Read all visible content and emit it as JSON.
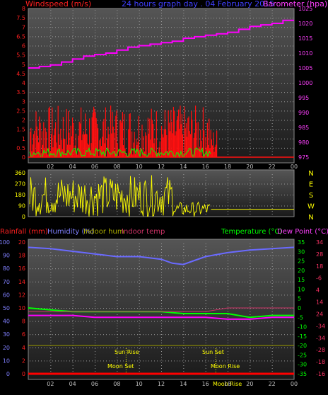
{
  "chart_data": [
    {
      "type": "line",
      "title": "24 hours graph day . 04 February 2015",
      "left_axis_label": "Windspeed (m/s)",
      "right_axis_label": "Barometer (hpa)",
      "left_ticks": [
        "0",
        "0.5",
        "1",
        "1.5",
        "2",
        "2.5",
        "3",
        "3.5",
        "4",
        "4.5",
        "5",
        "5.5",
        "6",
        "6.5",
        "7",
        "7.5",
        "8"
      ],
      "right_ticks": [
        "975",
        "980",
        "985",
        "990",
        "995",
        "1000",
        "1005",
        "1010",
        "1015",
        "1020",
        "1025"
      ],
      "x_ticks": [
        "02",
        "04",
        "06",
        "08",
        "10",
        "12",
        "14",
        "16",
        "18",
        "20",
        "22",
        "00"
      ],
      "ylim_left": [
        0,
        8
      ],
      "ylim_right": [
        975,
        1025
      ],
      "series": [
        {
          "name": "Barometer",
          "color": "#ff00ff",
          "x": [
            0,
            1,
            2,
            3,
            4,
            5,
            6,
            7,
            8,
            9,
            10,
            11,
            12,
            13,
            14,
            15,
            16,
            17,
            18,
            19,
            20,
            21,
            22,
            23,
            24
          ],
          "y": [
            1005,
            1005.5,
            1006,
            1007,
            1008,
            1009,
            1009.5,
            1010,
            1011,
            1012,
            1012.5,
            1013,
            1013.5,
            1014,
            1015,
            1015.5,
            1016,
            1016.5,
            1017,
            1018,
            1019,
            1019.5,
            1020,
            1021,
            1021
          ]
        }
      ]
    },
    {
      "type": "line",
      "left_ticks": [
        "0",
        "90",
        "180",
        "270",
        "360"
      ],
      "right_labels": [
        "N",
        "W",
        "S",
        "E",
        "N"
      ],
      "ylim": [
        0,
        360
      ],
      "series": [
        {
          "name": "Wind direction",
          "color": "#ffff00"
        }
      ]
    },
    {
      "type": "line",
      "labels": {
        "rainfall": "Rainfall (mm)",
        "humidity": "Humidity (%)",
        "indoor_hum": "Indoor hum",
        "indoor_temp": "Indoor temp",
        "temperature": "Temperature (°C)",
        "dew_point": "Dew Point (°C)"
      },
      "left_ticks": [
        "0",
        "2",
        "4",
        "6",
        "8",
        "10",
        "12",
        "14",
        "16",
        "18",
        "20"
      ],
      "humidity_ticks": [
        "0",
        "10",
        "20",
        "30",
        "40",
        "50",
        "60",
        "70",
        "80",
        "90",
        "100"
      ],
      "temp_ticks": [
        "-35",
        "-30",
        "-25",
        "-20",
        "-15",
        "-10",
        "-5",
        "0",
        "5",
        "10",
        "15",
        "20",
        "25",
        "30",
        "35"
      ],
      "dew_ticks": [
        "-16",
        "-18",
        "-28",
        "-34",
        "-34",
        "24",
        "14",
        "4",
        "-6",
        "18",
        "28",
        "34"
      ],
      "x_ticks": [
        "02",
        "04",
        "06",
        "08",
        "10",
        "12",
        "14",
        "16",
        "18",
        "20",
        "22",
        "00"
      ],
      "annotations": {
        "sun_rise": "Sun Rise",
        "sun_set": "Sun Set",
        "moon_set": "Moon Set",
        "moon_rise": "Moon Rise",
        "moon_rise_2": "Moon Rise"
      },
      "series": [
        {
          "name": "Humidity",
          "color": "#6a6aff",
          "x": [
            0,
            2,
            4,
            6,
            8,
            10,
            12,
            13,
            14,
            15,
            16,
            18,
            20,
            22,
            24
          ],
          "y": [
            96,
            95,
            93,
            91,
            89,
            89,
            87,
            84,
            83,
            86,
            89,
            92,
            94,
            95,
            96
          ]
        },
        {
          "name": "Temperature",
          "color": "#00ff00",
          "x": [
            0,
            2,
            4,
            6,
            8,
            10,
            12,
            14,
            16,
            18,
            20,
            22,
            24
          ],
          "y": [
            0,
            -1,
            -2,
            -2,
            -2,
            -2,
            -2,
            -3,
            -3,
            -3,
            -5,
            -4,
            -4
          ]
        },
        {
          "name": "Dew Point",
          "color": "#ff00ff",
          "x": [
            0,
            2,
            4,
            6,
            8,
            10,
            12,
            14,
            16,
            18,
            20,
            22,
            24
          ],
          "y": [
            -4,
            -4,
            -4,
            -5,
            -5,
            -5,
            -5,
            -5,
            -5,
            -6,
            -6,
            -5,
            -5
          ]
        },
        {
          "name": "Indoor temp",
          "color": "#cc3366",
          "x": [
            0,
            12,
            16,
            18,
            24
          ],
          "y": [
            -2,
            -2,
            -2,
            0,
            0
          ]
        },
        {
          "name": "Indoor hum",
          "color": "#999900",
          "x": [
            0,
            24
          ],
          "y": [
            -20,
            -20
          ]
        },
        {
          "name": "Rainfall",
          "color": "#ff0000",
          "x": [
            0,
            24
          ],
          "y": [
            0,
            0
          ]
        }
      ]
    }
  ]
}
